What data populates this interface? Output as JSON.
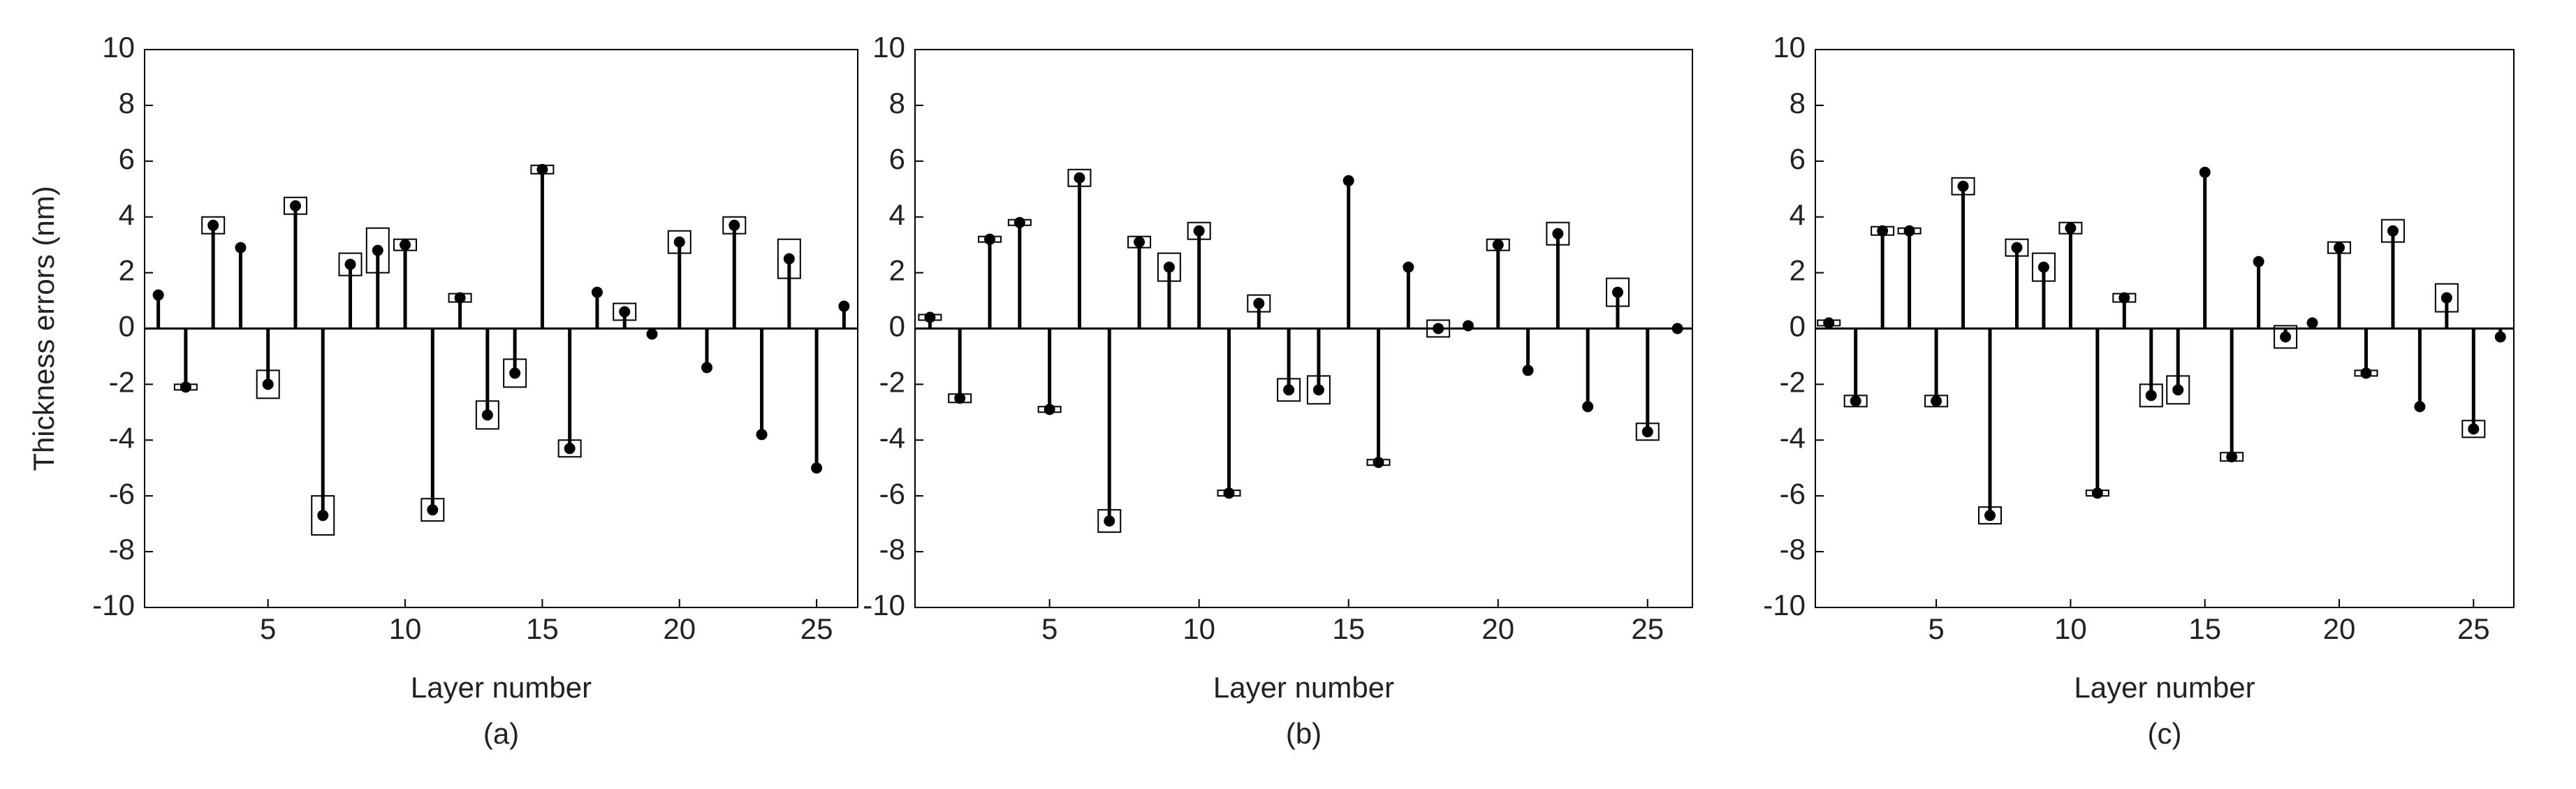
{
  "chart_data": [
    {
      "type": "stem",
      "caption": "(a)",
      "xlabel": "Layer number",
      "ylabel": "Thickness errors (nm)",
      "color": "#000000",
      "x": [
        1,
        2,
        3,
        4,
        5,
        6,
        7,
        8,
        9,
        10,
        11,
        12,
        13,
        14,
        15,
        16,
        17,
        18,
        19,
        20,
        21,
        22,
        23,
        24,
        25,
        26
      ],
      "values": [
        1.2,
        -2.1,
        3.7,
        2.9,
        -2.0,
        4.4,
        -6.7,
        2.3,
        2.8,
        3.0,
        -6.5,
        1.1,
        -3.1,
        -1.6,
        5.7,
        -4.3,
        1.3,
        0.6,
        -0.2,
        3.1,
        -1.4,
        3.7,
        -3.8,
        2.5,
        -5.0,
        0.8
      ],
      "errors": [
        0,
        0.1,
        0.3,
        0,
        0.5,
        0.3,
        0.7,
        0.4,
        0.8,
        0.2,
        0.4,
        0.15,
        0.5,
        0.5,
        0.15,
        0.3,
        0,
        0.3,
        0,
        0.4,
        0,
        0.3,
        0,
        0.7,
        0,
        0
      ],
      "xlim": [
        0.5,
        26.5
      ],
      "ylim": [
        -10,
        10
      ],
      "xticks": [
        5,
        10,
        15,
        20,
        25
      ],
      "yticks": [
        -10,
        -8,
        -6,
        -4,
        -2,
        0,
        2,
        4,
        6,
        8,
        10
      ]
    },
    {
      "type": "stem",
      "caption": "(b)",
      "xlabel": "Layer number",
      "color": "#000000",
      "x": [
        1,
        2,
        3,
        4,
        5,
        6,
        7,
        8,
        9,
        10,
        11,
        12,
        13,
        14,
        15,
        16,
        17,
        18,
        19,
        20,
        21,
        22,
        23,
        24,
        25,
        26
      ],
      "values": [
        0.4,
        -2.5,
        3.2,
        3.8,
        -2.9,
        5.4,
        -6.9,
        3.1,
        2.2,
        3.5,
        -5.9,
        0.9,
        -2.2,
        -2.2,
        5.3,
        -4.8,
        2.2,
        0.0,
        0.1,
        3.0,
        -1.5,
        3.4,
        -2.8,
        1.3,
        -3.7,
        0.0
      ],
      "errors": [
        0.1,
        0.15,
        0.1,
        0.1,
        0.1,
        0.3,
        0.4,
        0.2,
        0.5,
        0.3,
        0.1,
        0.3,
        0.4,
        0.5,
        0,
        0.1,
        0,
        0.3,
        0,
        0.2,
        0,
        0.4,
        0,
        0.5,
        0.3,
        0
      ],
      "xlim": [
        0.5,
        26.5
      ],
      "ylim": [
        -10,
        10
      ],
      "xticks": [
        5,
        10,
        15,
        20,
        25
      ],
      "yticks": [
        -10,
        -8,
        -6,
        -4,
        -2,
        0,
        2,
        4,
        6,
        8,
        10
      ]
    },
    {
      "type": "stem",
      "caption": "(c)",
      "xlabel": "Layer number",
      "color": "#000000",
      "x": [
        1,
        2,
        3,
        4,
        5,
        6,
        7,
        8,
        9,
        10,
        11,
        12,
        13,
        14,
        15,
        16,
        17,
        18,
        19,
        20,
        21,
        22,
        23,
        24,
        25,
        26
      ],
      "values": [
        0.2,
        -2.6,
        3.5,
        3.5,
        -2.6,
        5.1,
        -6.7,
        2.9,
        2.2,
        3.6,
        -5.9,
        1.1,
        -2.4,
        -2.2,
        5.6,
        -4.6,
        2.4,
        -0.3,
        0.2,
        2.9,
        -1.6,
        3.5,
        -2.8,
        1.1,
        -3.6,
        -0.3
      ],
      "errors": [
        0.1,
        0.2,
        0.15,
        0.1,
        0.2,
        0.3,
        0.3,
        0.3,
        0.5,
        0.2,
        0.1,
        0.15,
        0.4,
        0.5,
        0,
        0.15,
        0,
        0.4,
        0,
        0.2,
        0.1,
        0.4,
        0,
        0.5,
        0.3,
        0
      ],
      "xlim": [
        0.5,
        26.5
      ],
      "ylim": [
        -10,
        10
      ],
      "xticks": [
        5,
        10,
        15,
        20,
        25
      ],
      "yticks": [
        -10,
        -8,
        -6,
        -4,
        -2,
        0,
        2,
        4,
        6,
        8,
        10
      ]
    }
  ]
}
